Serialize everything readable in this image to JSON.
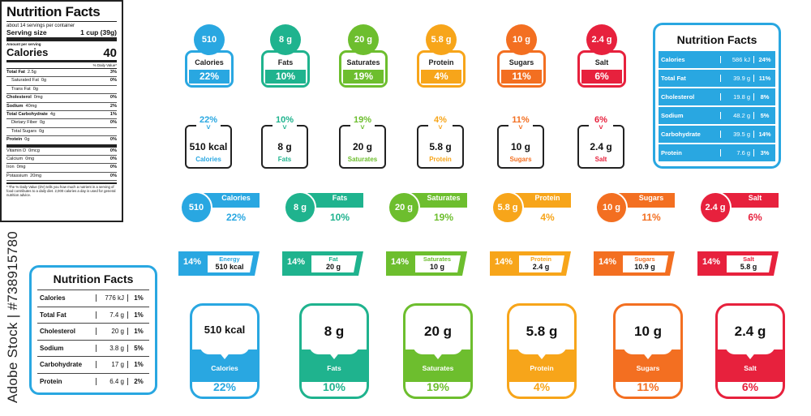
{
  "colors": {
    "blue": "#29a7e1",
    "teal": "#1fb38e",
    "green": "#6dbe2e",
    "yellow": "#f7a51a",
    "orange": "#f36f21",
    "red": "#e7213d"
  },
  "label1": {
    "title": "Nutrition Facts",
    "servings": "about 14 servings per container",
    "serving_size_label": "Serving size",
    "serving_size_value": "1 cup (39g)",
    "amount_per": "Amount per serving",
    "calories_label": "Calories",
    "calories_value": "40",
    "dv_header": "% Daily Value*",
    "rows": [
      {
        "name": "Total Fat",
        "amt": "2.5g",
        "pct": "3%",
        "bold": true
      },
      {
        "name": "Saturated Fat",
        "amt": "0g",
        "pct": "0%",
        "indent": true
      },
      {
        "name": "Trans Fat",
        "amt": "0g",
        "pct": "",
        "indent": true
      },
      {
        "name": "Cholesterol",
        "amt": "0mg",
        "pct": "0%",
        "bold": true
      },
      {
        "name": "Sodium",
        "amt": "40mg",
        "pct": "2%",
        "bold": true
      },
      {
        "name": "Total Carbohydrate",
        "amt": "4g",
        "pct": "1%",
        "bold": true
      },
      {
        "name": "Dietary Fiber",
        "amt": "0g",
        "pct": "0%",
        "indent": true
      },
      {
        "name": "Total Sugars",
        "amt": "0g",
        "pct": "",
        "indent": true
      },
      {
        "name": "Protein",
        "amt": "0g",
        "pct": "0%",
        "bold": true,
        "thick": true
      },
      {
        "name": "Vitamin D",
        "amt": "0mcg",
        "pct": "0%"
      },
      {
        "name": "Calcium",
        "amt": "0mg",
        "pct": "0%"
      },
      {
        "name": "Iron",
        "amt": "0mg",
        "pct": "0%"
      },
      {
        "name": "Potassium",
        "amt": "20mg",
        "pct": "0%"
      }
    ],
    "footnote": "* The % Daily Value (DV) tells you how much a nutrient in a serving of food contributes to a daily diet. 2,000 calories a day is used for general nutrition advice."
  },
  "label2": {
    "title": "Nutrition Facts",
    "rows": [
      {
        "name": "Calories",
        "amt": "776 kJ",
        "pct": "1%"
      },
      {
        "name": "Total Fat",
        "amt": "7.4 g",
        "pct": "1%"
      },
      {
        "name": "Cholesterol",
        "amt": "20 g",
        "pct": "1%"
      },
      {
        "name": "Sodium",
        "amt": "3.8 g",
        "pct": "5%"
      },
      {
        "name": "Carbohydrate",
        "amt": "17 g",
        "pct": "1%"
      },
      {
        "name": "Protein",
        "amt": "6.4 g",
        "pct": "2%"
      }
    ]
  },
  "label3": {
    "title": "Nutrition Facts",
    "rows": [
      {
        "name": "Calories",
        "amt": "586 kJ",
        "pct": "24%"
      },
      {
        "name": "Total Fat",
        "amt": "39.9 g",
        "pct": "11%"
      },
      {
        "name": "Cholesterol",
        "amt": "19.8 g",
        "pct": "8%"
      },
      {
        "name": "Sodium",
        "amt": "48.2 g",
        "pct": "5%"
      },
      {
        "name": "Carbohydrate",
        "amt": "39.5 g",
        "pct": "14%"
      },
      {
        "name": "Protein",
        "amt": "7.6 g",
        "pct": "3%"
      }
    ]
  },
  "row1": [
    {
      "value": "510",
      "name": "Calories",
      "pct": "22%",
      "color": "blue"
    },
    {
      "value": "8 g",
      "name": "Fats",
      "pct": "10%",
      "color": "teal"
    },
    {
      "value": "20 g",
      "name": "Saturates",
      "pct": "19%",
      "color": "green"
    },
    {
      "value": "5.8 g",
      "name": "Protein",
      "pct": "4%",
      "color": "yellow"
    },
    {
      "value": "10 g",
      "name": "Sugars",
      "pct": "11%",
      "color": "orange"
    },
    {
      "value": "2.4 g",
      "name": "Salt",
      "pct": "6%",
      "color": "red"
    }
  ],
  "row2": [
    {
      "pct": "22%",
      "value": "510 kcal",
      "name": "Calories",
      "color": "blue"
    },
    {
      "pct": "10%",
      "value": "8 g",
      "name": "Fats",
      "color": "teal"
    },
    {
      "pct": "19%",
      "value": "20 g",
      "name": "Saturates",
      "color": "green"
    },
    {
      "pct": "4%",
      "value": "5.8 g",
      "name": "Protein",
      "color": "yellow"
    },
    {
      "pct": "11%",
      "value": "10 g",
      "name": "Sugars",
      "color": "orange"
    },
    {
      "pct": "6%",
      "value": "2.4 g",
      "name": "Salt",
      "color": "red"
    }
  ],
  "row3": [
    {
      "value": "510",
      "name": "Calories",
      "pct": "22%",
      "color": "blue"
    },
    {
      "value": "8 g",
      "name": "Fats",
      "pct": "10%",
      "color": "teal"
    },
    {
      "value": "20 g",
      "name": "Saturates",
      "pct": "19%",
      "color": "green"
    },
    {
      "value": "5.8 g",
      "name": "Protein",
      "pct": "4%",
      "color": "yellow"
    },
    {
      "value": "10 g",
      "name": "Sugars",
      "pct": "11%",
      "color": "orange"
    },
    {
      "value": "2.4 g",
      "name": "Salt",
      "pct": "6%",
      "color": "red"
    }
  ],
  "row4": [
    {
      "pct": "14%",
      "name": "Energy",
      "value": "510 kcal",
      "color": "blue"
    },
    {
      "pct": "14%",
      "name": "Fat",
      "value": "20 g",
      "color": "teal"
    },
    {
      "pct": "14%",
      "name": "Saturates",
      "value": "10 g",
      "color": "green"
    },
    {
      "pct": "14%",
      "name": "Protein",
      "value": "2.4 g",
      "color": "yellow"
    },
    {
      "pct": "14%",
      "name": "Sugars",
      "value": "10.9 g",
      "color": "orange"
    },
    {
      "pct": "14%",
      "name": "Salt",
      "value": "5.8 g",
      "color": "red"
    }
  ],
  "row5": [
    {
      "value": "510 kcal",
      "name": "Calories",
      "pct": "22%",
      "color": "blue"
    },
    {
      "value": "8 g",
      "name": "Fats",
      "pct": "10%",
      "color": "teal"
    },
    {
      "value": "20 g",
      "name": "Saturates",
      "pct": "19%",
      "color": "green"
    },
    {
      "value": "5.8 g",
      "name": "Protein",
      "pct": "4%",
      "color": "yellow"
    },
    {
      "value": "10 g",
      "name": "Sugars",
      "pct": "11%",
      "color": "orange"
    },
    {
      "value": "2.4 g",
      "name": "Salt",
      "pct": "6%",
      "color": "red"
    }
  ],
  "watermark": "Adobe Stock | #738915780"
}
